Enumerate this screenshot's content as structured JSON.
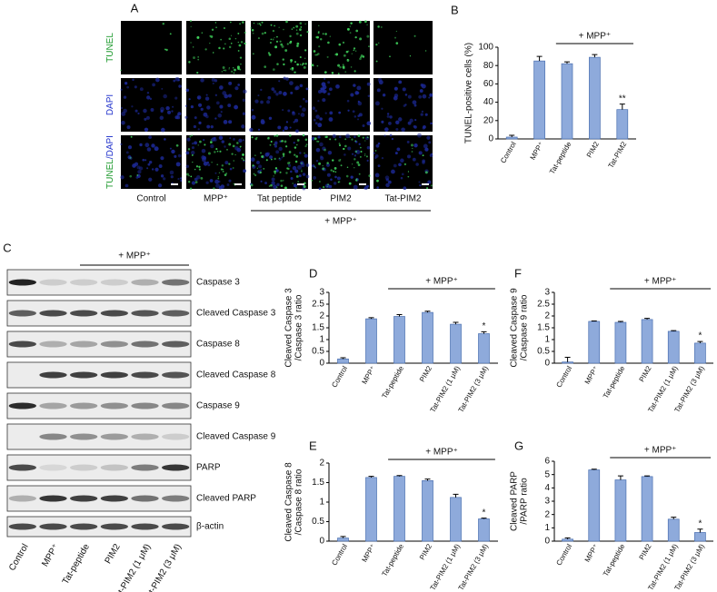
{
  "panel_a": {
    "panel": "A",
    "row_labels": [
      [
        "TUNEL"
      ],
      [
        "DAPI"
      ],
      [
        "TUNEL",
        "/DAPI"
      ]
    ],
    "columns": [
      "Control",
      "MPP⁺",
      "Tat peptide",
      "PIM2",
      "Tat-PIM2"
    ],
    "group_label": "+ MPP⁺"
  },
  "panel_c": {
    "panel": "C",
    "bands": [
      "Caspase 3",
      "Cleaved Caspase 3",
      "Caspase 8",
      "Cleaved Caspase 8",
      "Caspase 9",
      "Cleaved Caspase 9",
      "PARP",
      "Cleaved PARP",
      "β-actin"
    ],
    "lanes": [
      "Control",
      "MPP⁺",
      "Tat-peptide",
      "PIM2",
      "Tat-PIM2 (1 μM)",
      "Tat-PIM2 (3 μM)"
    ],
    "group_label": "+ MPP⁺"
  },
  "chart_data": [
    {
      "type": "bar",
      "panel": "B",
      "ylabel": [
        "TUNEL-positive cells (%)"
      ],
      "categories": [
        "Control",
        "MPP⁺",
        "Tat-peptide",
        "PIM2",
        "Tat-PIM2"
      ],
      "values": [
        2,
        85,
        82,
        89,
        32
      ],
      "errors": [
        2,
        5,
        2,
        3,
        6
      ],
      "significance": [
        null,
        null,
        null,
        null,
        "**"
      ],
      "group_label": "+ MPP⁺",
      "color": "#8eaadb",
      "ylim": [
        0,
        100
      ],
      "yticks": [
        0,
        20,
        40,
        60,
        80,
        100
      ]
    },
    {
      "type": "bar",
      "panel": "D",
      "ylabel": [
        "Cleaved Caspase 3",
        "/Caspase 3 ratio"
      ],
      "categories": [
        "Control",
        "MPP⁺",
        "Tat-peptide",
        "PIM2",
        "Tat-PIM2 (1 μM)",
        "Tat-PIM2 (3 μM)"
      ],
      "values": [
        0.18,
        1.88,
        1.98,
        2.15,
        1.65,
        1.25
      ],
      "errors": [
        0.05,
        0.05,
        0.08,
        0.05,
        0.08,
        0.08
      ],
      "significance": [
        null,
        null,
        null,
        null,
        null,
        "*"
      ],
      "group_label": "+ MPP⁺",
      "color": "#8eaadb",
      "ylim": [
        0,
        3
      ],
      "yticks": [
        0,
        0.5,
        1,
        1.5,
        2,
        2.5,
        3
      ]
    },
    {
      "type": "bar",
      "panel": "E",
      "ylabel": [
        "Cleaved Caspase 8",
        "/Caspase 8 ratio"
      ],
      "categories": [
        "Control",
        "MPP⁺",
        "Tat-peptide",
        "PIM2",
        "Tat-PIM2 (1 μM)",
        "Tat-PIM2 (3 μM)"
      ],
      "values": [
        0.08,
        1.63,
        1.66,
        1.55,
        1.12,
        0.57
      ],
      "errors": [
        0.04,
        0.03,
        0.02,
        0.04,
        0.08,
        0.02
      ],
      "significance": [
        null,
        null,
        null,
        null,
        null,
        "*"
      ],
      "group_label": "+ MPP⁺",
      "color": "#8eaadb",
      "ylim": [
        0,
        2
      ],
      "yticks": [
        0,
        0.5,
        1,
        1.5,
        2
      ]
    },
    {
      "type": "bar",
      "panel": "F",
      "ylabel": [
        "Cleaved Caspase 9",
        "/Caspase 9 ratio"
      ],
      "categories": [
        "Control",
        "MPP⁺",
        "Tat-peptide",
        "PIM2",
        "Tat-PIM2 (1 μM)",
        "Tat-PIM2 (3 μM)"
      ],
      "values": [
        0.05,
        1.77,
        1.73,
        1.85,
        1.35,
        0.85
      ],
      "errors": [
        0.2,
        0.02,
        0.04,
        0.05,
        0.03,
        0.07
      ],
      "significance": [
        null,
        null,
        null,
        null,
        null,
        "*"
      ],
      "group_label": "+ MPP⁺",
      "color": "#8eaadb",
      "ylim": [
        0,
        3
      ],
      "yticks": [
        0,
        0.5,
        1,
        1.5,
        2,
        2.5,
        3
      ]
    },
    {
      "type": "bar",
      "panel": "G",
      "ylabel": [
        "Cleaved PARP",
        "/PARP ratio"
      ],
      "categories": [
        "Control",
        "MPP⁺",
        "Tat-peptide",
        "PIM2",
        "Tat-PIM2 (1 μM)",
        "Tat-PIM2 (3 μM)"
      ],
      "values": [
        0.15,
        5.35,
        4.6,
        4.85,
        1.65,
        0.65
      ],
      "errors": [
        0.1,
        0.05,
        0.3,
        0.05,
        0.15,
        0.25
      ],
      "significance": [
        null,
        null,
        null,
        null,
        null,
        "*"
      ],
      "group_label": "+ MPP⁺",
      "color": "#8eaadb",
      "ylim": [
        0,
        6
      ],
      "yticks": [
        0,
        1,
        2,
        3,
        4,
        5,
        6
      ]
    }
  ]
}
